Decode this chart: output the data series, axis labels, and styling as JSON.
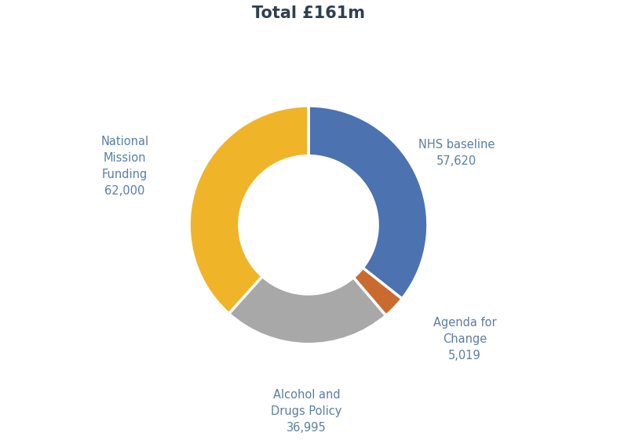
{
  "title": "Total £161m",
  "slices": [
    {
      "label": "NHS baseline\n57,620",
      "value": 57620,
      "color": "#4C72B0"
    },
    {
      "label": "Agenda for\nChange\n5,019",
      "value": 5019,
      "color": "#C96A2E"
    },
    {
      "label": "Alcohol and\nDrugs Policy\n36,995",
      "value": 36995,
      "color": "#A8A8A8"
    },
    {
      "label": "National\nMission\nFunding\n62,000",
      "value": 62000,
      "color": "#F0B429"
    }
  ],
  "label_color": "#5B7FA6",
  "title_color": "#2E3F50",
  "background_color": "#FFFFFF",
  "donut_width": 0.42,
  "figsize": [
    7.86,
    5.7
  ],
  "dpi": 100,
  "title_fontsize": 15,
  "label_fontsize": 10.5
}
